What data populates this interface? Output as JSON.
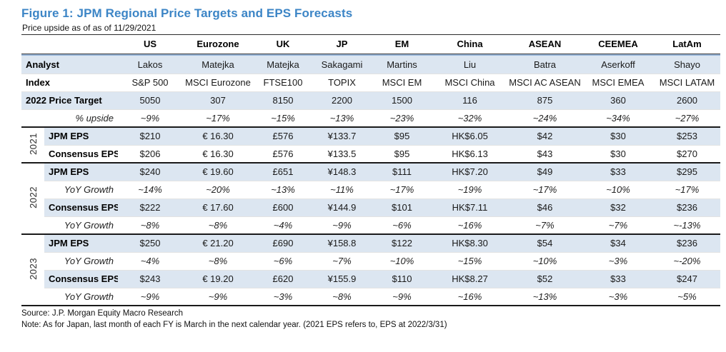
{
  "figure": {
    "title": "Figure 1: JPM Regional Price Targets and EPS Forecasts",
    "subtitle": "Price upside as of as of 11/29/2021"
  },
  "colors": {
    "title_blue": "#3C85C6",
    "row_shade": "#DCE6F1",
    "accent_line": "#95B3D7",
    "section_line": "#1A1A1A"
  },
  "table": {
    "columns": [
      "US",
      "Eurozone",
      "UK",
      "JP",
      "EM",
      "China",
      "ASEAN",
      "CEEMEA",
      "LatAm"
    ],
    "info_rows": [
      {
        "label": "Analyst",
        "italic": false,
        "values": [
          "Lakos",
          "Matejka",
          "Matejka",
          "Sakagami",
          "Martins",
          "Liu",
          "Batra",
          "Aserkoff",
          "Shayo"
        ]
      },
      {
        "label": "Index",
        "italic": false,
        "values": [
          "S&P 500",
          "MSCI Eurozone",
          "FTSE100",
          "TOPIX",
          "MSCI EM",
          "MSCI China",
          "MSCI AC ASEAN",
          "MSCI EMEA",
          "MSCI LATAM"
        ]
      },
      {
        "label": "2022 Price Target",
        "italic": false,
        "values": [
          "5050",
          "307",
          "8150",
          "2200",
          "1500",
          "116",
          "875",
          "360",
          "2600"
        ]
      },
      {
        "label": "% upside",
        "italic": true,
        "values": [
          "~9%",
          "~17%",
          "~15%",
          "~13%",
          "~23%",
          "~32%",
          "~24%",
          "~34%",
          "~27%"
        ]
      }
    ],
    "year_sections": [
      {
        "year": "2021",
        "rows": [
          {
            "label": "JPM EPS",
            "italic": false,
            "values": [
              "$210",
              "€ 16.30",
              "£576",
              "¥133.7",
              "$95",
              "HK$6.05",
              "$42",
              "$30",
              "$253"
            ]
          },
          {
            "label": "Consensus EPS",
            "italic": false,
            "values": [
              "$206",
              "€ 16.30",
              "£576",
              "¥133.5",
              "$95",
              "HK$6.13",
              "$43",
              "$30",
              "$270"
            ]
          }
        ]
      },
      {
        "year": "2022",
        "rows": [
          {
            "label": "JPM EPS",
            "italic": false,
            "values": [
              "$240",
              "€ 19.60",
              "£651",
              "¥148.3",
              "$111",
              "HK$7.20",
              "$49",
              "$33",
              "$295"
            ]
          },
          {
            "label": "YoY Growth",
            "italic": true,
            "values": [
              "~14%",
              "~20%",
              "~13%",
              "~11%",
              "~17%",
              "~19%",
              "~17%",
              "~10%",
              "~17%"
            ]
          },
          {
            "label": "Consensus EPS",
            "italic": false,
            "values": [
              "$222",
              "€ 17.60",
              "£600",
              "¥144.9",
              "$101",
              "HK$7.11",
              "$46",
              "$32",
              "$236"
            ]
          },
          {
            "label": "YoY Growth",
            "italic": true,
            "values": [
              "~8%",
              "~8%",
              "~4%",
              "~9%",
              "~6%",
              "~16%",
              "~7%",
              "~7%",
              "~-13%"
            ]
          }
        ]
      },
      {
        "year": "2023",
        "rows": [
          {
            "label": "JPM EPS",
            "italic": false,
            "values": [
              "$250",
              "€ 21.20",
              "£690",
              "¥158.8",
              "$122",
              "HK$8.30",
              "$54",
              "$34",
              "$236"
            ]
          },
          {
            "label": "YoY Growth",
            "italic": true,
            "values": [
              "~4%",
              "~8%",
              "~6%",
              "~7%",
              "~10%",
              "~15%",
              "~10%",
              "~3%",
              "~-20%"
            ]
          },
          {
            "label": "Consensus EPS",
            "italic": false,
            "values": [
              "$243",
              "€ 19.20",
              "£620",
              "¥155.9",
              "$110",
              "HK$8.27",
              "$52",
              "$33",
              "$247"
            ]
          },
          {
            "label": "YoY Growth",
            "italic": true,
            "values": [
              "~9%",
              "~9%",
              "~3%",
              "~8%",
              "~9%",
              "~16%",
              "~13%",
              "~3%",
              "~5%"
            ]
          }
        ]
      }
    ]
  },
  "footer": {
    "source": "Source: J.P. Morgan Equity Macro Research",
    "note": "Note: As for Japan, last month of each FY is March in the next calendar year. (2021 EPS refers to, EPS at 2022/3/31)"
  }
}
